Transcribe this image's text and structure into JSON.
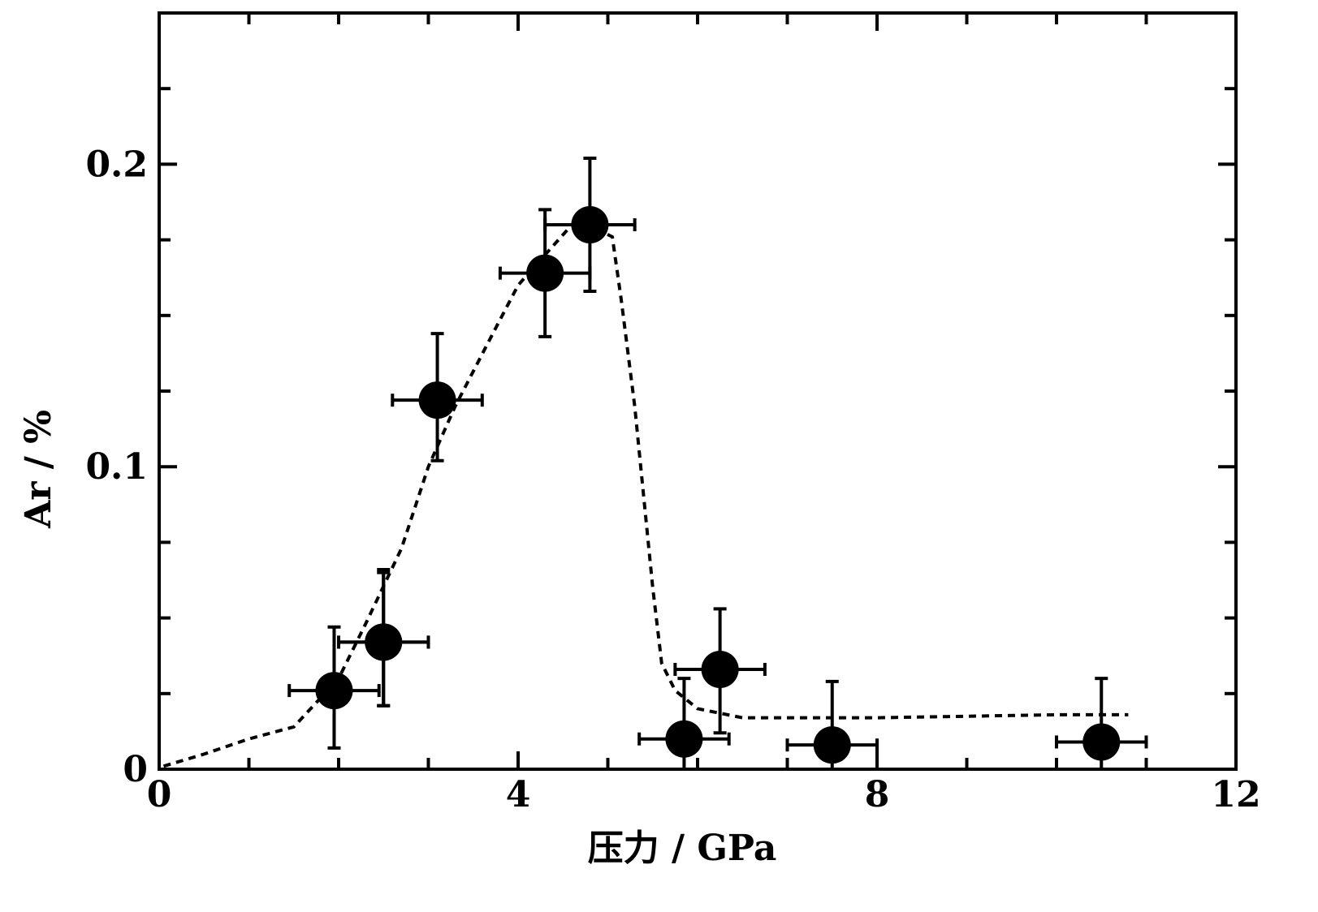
{
  "chart_data": {
    "type": "scatter",
    "xlabel": "压力 / GPa",
    "ylabel": "Ar / %",
    "xlim": [
      0,
      12
    ],
    "ylim": [
      0,
      0.25
    ],
    "x_ticks": [
      0,
      4,
      8,
      12
    ],
    "x_tick_labels": [
      "0",
      "4",
      "8",
      "12"
    ],
    "y_ticks": [
      0,
      0.1,
      0.2
    ],
    "y_tick_labels": [
      "0",
      "0.1",
      "0.2"
    ],
    "x_minor_step": 1,
    "y_minor_step": 0.025,
    "grid": false,
    "points": [
      {
        "x": 1.95,
        "y": 0.026,
        "xerr": 0.5,
        "yerr_low": 0.019,
        "yerr_high": 0.021
      },
      {
        "x": 2.5,
        "y": 0.042,
        "xerr": 0.5,
        "yerr_low": 0.021,
        "yerr_high": 0.023
      },
      {
        "x": 2.5,
        "y": 0.042,
        "xerr": 0.5,
        "yerr_low": 0.021,
        "yerr_high": 0.024
      },
      {
        "x": 3.1,
        "y": 0.122,
        "xerr": 0.5,
        "yerr_low": 0.02,
        "yerr_high": 0.022
      },
      {
        "x": 4.3,
        "y": 0.164,
        "xerr": 0.5,
        "yerr_low": 0.021,
        "yerr_high": 0.021
      },
      {
        "x": 4.8,
        "y": 0.18,
        "xerr": 0.5,
        "yerr_low": 0.022,
        "yerr_high": 0.022
      },
      {
        "x": 5.85,
        "y": 0.01,
        "xerr": 0.5,
        "yerr_low": 0.01,
        "yerr_high": 0.02
      },
      {
        "x": 6.25,
        "y": 0.033,
        "xerr": 0.5,
        "yerr_low": 0.021,
        "yerr_high": 0.02
      },
      {
        "x": 7.5,
        "y": 0.008,
        "xerr": 0.5,
        "yerr_low": 0.008,
        "yerr_high": 0.021
      },
      {
        "x": 10.5,
        "y": 0.009,
        "xerr": 0.5,
        "yerr_low": 0.009,
        "yerr_high": 0.021
      }
    ],
    "trend_line": {
      "style": "dashed",
      "x": [
        0.05,
        0.5,
        1.0,
        1.5,
        2.0,
        2.3,
        2.7,
        3.0,
        3.3,
        3.7,
        4.0,
        4.3,
        4.6,
        4.85,
        5.05,
        5.15,
        5.3,
        5.5,
        5.6,
        5.75,
        6.0,
        6.5,
        8.0,
        10.0,
        10.8
      ],
      "y": [
        0.001,
        0.005,
        0.01,
        0.014,
        0.03,
        0.048,
        0.073,
        0.1,
        0.12,
        0.143,
        0.16,
        0.17,
        0.18,
        0.179,
        0.176,
        0.155,
        0.12,
        0.06,
        0.035,
        0.026,
        0.02,
        0.017,
        0.017,
        0.018,
        0.018
      ]
    }
  }
}
